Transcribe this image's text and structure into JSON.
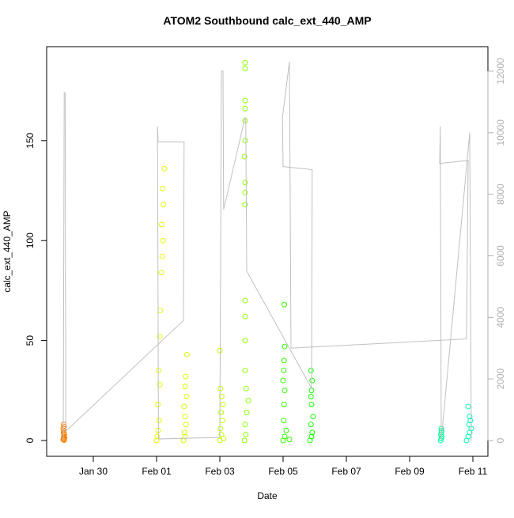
{
  "chart_data": {
    "type": "scatter",
    "title": "ATOM2 Southbound calc_ext_440_AMP",
    "x_label": "Date",
    "y_label": "calc_ext_440_AMP",
    "xlim": [
      28.525,
      42.475
    ],
    "xticks": [
      {
        "value": 30,
        "label": "Jan 30"
      },
      {
        "value": 32,
        "label": "Feb 01"
      },
      {
        "value": 34,
        "label": "Feb 03"
      },
      {
        "value": 36,
        "label": "Feb 05"
      },
      {
        "value": 38,
        "label": "Feb 07"
      },
      {
        "value": 40,
        "label": "Feb 09"
      },
      {
        "value": 42,
        "label": "Feb 11"
      }
    ],
    "ylim": [
      -7.9,
      197
    ],
    "yticks": [
      0,
      50,
      100,
      150
    ],
    "y2lim": [
      -514,
      12796
    ],
    "y2ticks": [
      0,
      2000,
      4000,
      6000,
      8000,
      10000,
      12000
    ],
    "series": [
      {
        "type": "scatter",
        "color": "#ff8000",
        "x": [
          29.05,
          29.06,
          29.07,
          29.08,
          29.06,
          29.07,
          29.05,
          29.08,
          29.06,
          29.09,
          29.07,
          29.08
        ],
        "values": [
          0.5,
          1,
          2,
          3,
          4,
          5,
          6,
          7,
          8,
          1.5,
          3.5,
          0.2
        ]
      },
      {
        "type": "scatter",
        "color": "#e6ff00",
        "x": [
          32.0,
          32.02,
          32.05,
          32.08,
          32.04,
          32.1,
          32.06,
          32.1,
          32.12,
          32.15,
          32.18,
          32.2,
          32.16,
          32.22,
          32.19,
          32.25
        ],
        "values": [
          0,
          2,
          5,
          10,
          18,
          28,
          35,
          52,
          65,
          84,
          92,
          100,
          108,
          118,
          126,
          136
        ]
      },
      {
        "type": "scatter",
        "color": "#d9ff00",
        "x": [
          32.85,
          32.9,
          32.88,
          32.93,
          32.9,
          32.87,
          32.95,
          32.9,
          32.92,
          32.96
        ],
        "values": [
          0,
          2,
          4,
          8,
          12,
          17,
          22,
          27,
          32,
          43
        ]
      },
      {
        "type": "scatter",
        "color": "#bfff00",
        "x": [
          34.0,
          34.05,
          34.02,
          34.08,
          34.04,
          34.1,
          34.06,
          34.02,
          34.0,
          34.12
        ],
        "values": [
          0,
          3,
          6,
          10,
          14,
          18,
          22,
          26,
          45,
          1
        ]
      },
      {
        "type": "scatter",
        "color": "#8cff00",
        "x": [
          34.78,
          34.82,
          34.8,
          34.85,
          34.9,
          34.83,
          34.8,
          34.8,
          34.8,
          34.8,
          34.8,
          34.8,
          34.8,
          34.78,
          34.8,
          34.8,
          34.8,
          34.8,
          34.8,
          34.8
        ],
        "values": [
          0,
          3,
          8,
          14,
          20,
          26,
          35,
          50,
          62,
          70,
          118,
          124,
          129,
          142,
          150,
          160,
          166,
          170,
          186,
          189
        ]
      },
      {
        "type": "scatter",
        "color": "#33ff00",
        "x": [
          36.0,
          36.05,
          36.1,
          36.02,
          36.03,
          36.05,
          36.0,
          36.02,
          36.03,
          36.05,
          36.04,
          36.2
        ],
        "values": [
          0,
          2,
          5,
          10,
          18,
          25,
          30,
          35,
          40,
          47,
          68,
          0.5
        ]
      },
      {
        "type": "scatter",
        "color": "#11ff00",
        "x": [
          36.85,
          36.9,
          36.92,
          36.88,
          36.95,
          36.9,
          36.88,
          36.9,
          36.92,
          36.88
        ],
        "values": [
          0,
          2,
          4,
          8,
          12,
          18,
          22,
          25,
          30,
          35
        ]
      },
      {
        "type": "scatter",
        "color": "#00ffa0",
        "x": [
          40.98,
          41.0,
          41.02,
          40.99,
          41.0,
          41.01,
          41.0
        ],
        "values": [
          0,
          1,
          2,
          3,
          4,
          5,
          6
        ]
      },
      {
        "type": "scatter",
        "color": "#00ffb8",
        "x": [
          41.8,
          41.85,
          41.9,
          41.95,
          41.88,
          41.92,
          41.9,
          41.85
        ],
        "values": [
          0,
          2,
          4,
          6,
          8,
          10,
          12,
          17
        ]
      },
      {
        "type": "line",
        "axis": "y2",
        "color": "#c0c0c0",
        "x": [
          29.05,
          29.08,
          29.11,
          29.13,
          32.85,
          32.87,
          32.05,
          32.03,
          32.06,
          34.0,
          34.05,
          34.1,
          34.12,
          34.8,
          34.82,
          34.85,
          36.9,
          36.92,
          36.0,
          35.98,
          36.2,
          36.25,
          41.8,
          41.85,
          40.95,
          40.97,
          41.0,
          41.9,
          41.95
        ],
        "values": [
          0,
          11300,
          11300,
          300,
          3900,
          9700,
          9700,
          10200,
          50,
          100,
          12000,
          12000,
          7500,
          10500,
          10400,
          5500,
          1700,
          8800,
          8900,
          10500,
          12300,
          3000,
          3300,
          9100,
          9000,
          10200,
          0,
          10000,
          0
        ]
      }
    ]
  }
}
